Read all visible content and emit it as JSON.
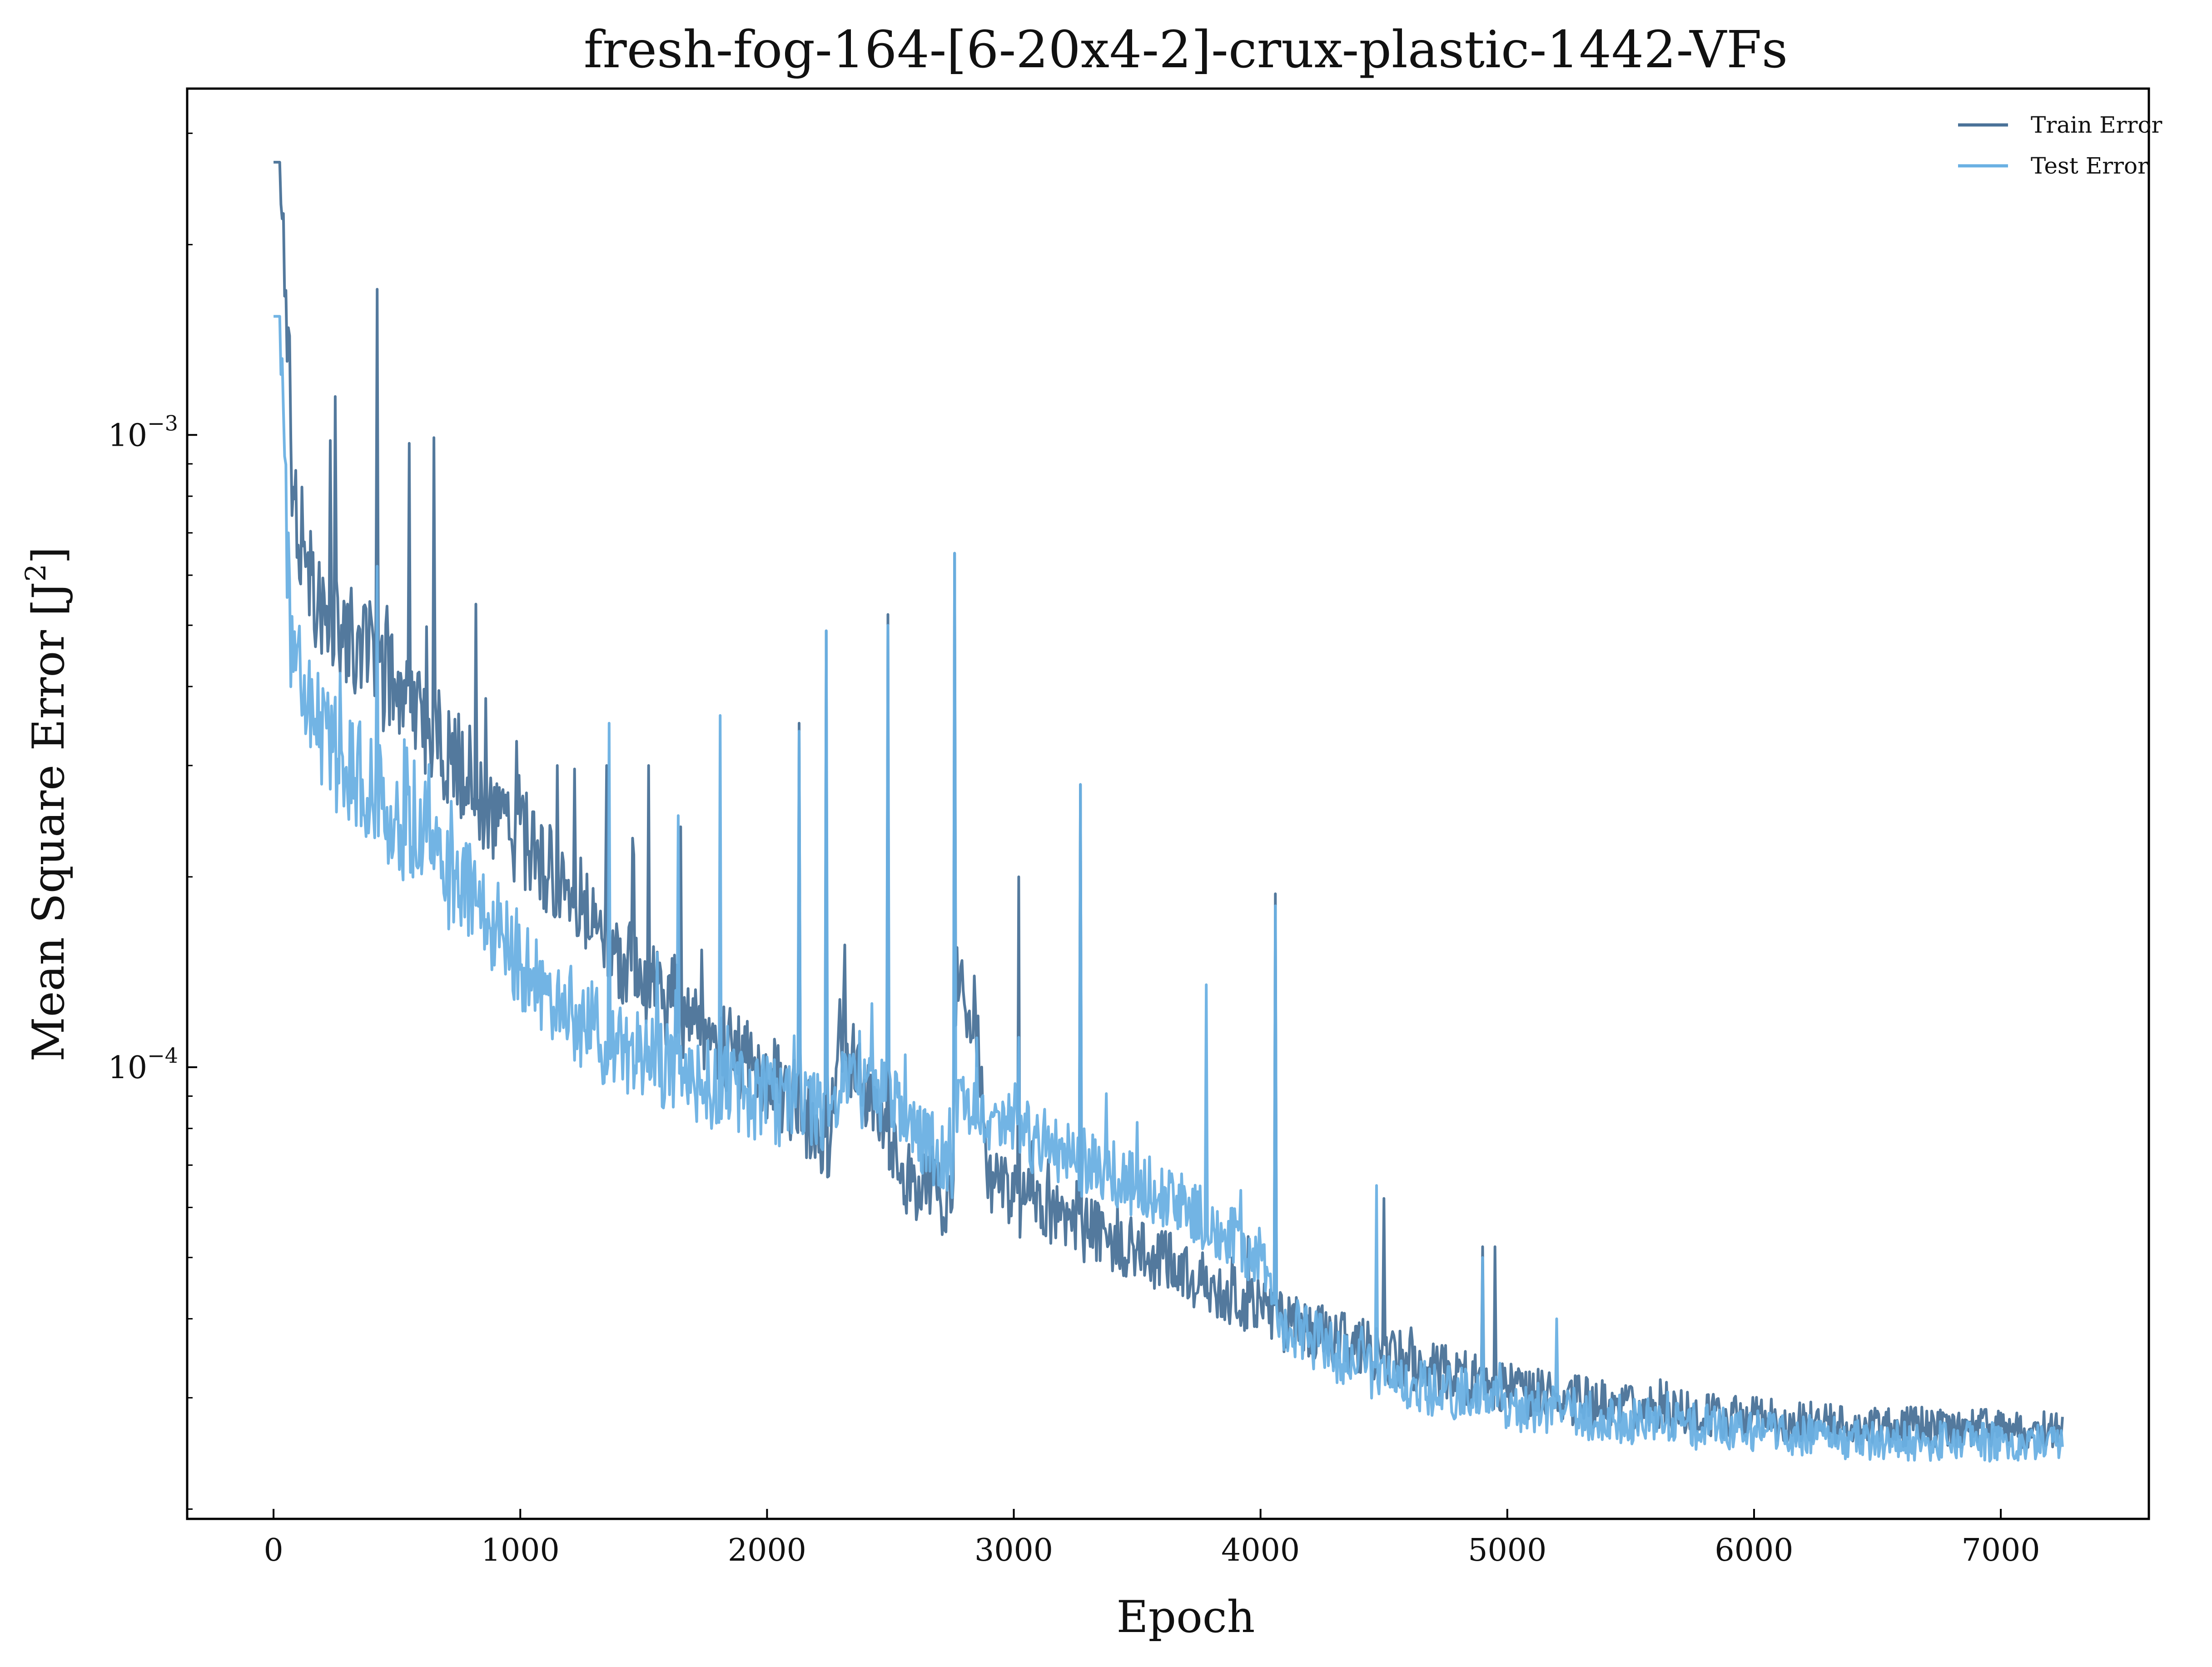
{
  "chart_data": {
    "type": "line",
    "title": "fresh-fog-164-[6-20x4-2]-crux-plastic-1442-VFs",
    "xlabel": "Epoch",
    "ylabel_main": "Mean Square Error [J",
    "ylabel_sup": "2",
    "ylabel_close": "]",
    "yscale": "log",
    "xlim": [
      -350,
      7600
    ],
    "ylim": [
      1.93e-05,
      0.00353
    ],
    "x_ticks": [
      0,
      1000,
      2000,
      3000,
      4000,
      5000,
      6000,
      7000
    ],
    "x_tick_labels": [
      "0",
      "1000",
      "2000",
      "3000",
      "4000",
      "5000",
      "6000",
      "7000"
    ],
    "y_ticks": [
      0.001,
      0.0001
    ],
    "y_tick_base": [
      "10",
      "10"
    ],
    "y_tick_exp": [
      "−3",
      "−4"
    ],
    "grid": false,
    "legend_position": "top-right",
    "series": [
      {
        "name": "Train Error",
        "color": "#4a7298",
        "baseline": [
          [
            0,
            0.0027
          ],
          [
            25,
            0.0027
          ],
          [
            60,
            0.0013
          ],
          [
            80,
            0.00072
          ],
          [
            150,
            0.00055
          ],
          [
            300,
            0.00046
          ],
          [
            500,
            0.00037
          ],
          [
            700,
            0.0003
          ],
          [
            900,
            0.00024
          ],
          [
            1200,
            0.00018
          ],
          [
            1500,
            0.00013
          ],
          [
            1800,
            0.000105
          ],
          [
            2000,
            9.2e-05
          ],
          [
            2100,
            8.5e-05
          ],
          [
            2250,
            7.2e-05
          ],
          [
            2300,
            0.00011
          ],
          [
            2400,
            8.5e-05
          ],
          [
            2500,
            7e-05
          ],
          [
            2600,
            6.2e-05
          ],
          [
            2750,
            5.8e-05
          ],
          [
            2770,
            0.00013
          ],
          [
            2850,
            0.00011
          ],
          [
            2900,
            6.2e-05
          ],
          [
            3200,
            5.5e-05
          ],
          [
            3500,
            5e-05
          ],
          [
            3800,
            4.4e-05
          ],
          [
            4000,
            4e-05
          ],
          [
            4100,
            3.8e-05
          ],
          [
            4500,
            3.4e-05
          ],
          [
            5000,
            3e-05
          ],
          [
            5500,
            2.8e-05
          ],
          [
            6000,
            2.72e-05
          ],
          [
            6500,
            2.65e-05
          ],
          [
            7000,
            2.62e-05
          ],
          [
            7250,
            2.62e-05
          ]
        ],
        "spikes": [
          [
            230,
            0.00098
          ],
          [
            250,
            0.00115
          ],
          [
            420,
            0.0017
          ],
          [
            550,
            0.00097
          ],
          [
            650,
            0.00099
          ],
          [
            820,
            0.00054
          ],
          [
            1150,
            0.0003
          ],
          [
            1350,
            0.0003
          ],
          [
            1520,
            0.0003
          ],
          [
            1650,
            0.00024
          ],
          [
            2130,
            0.00035
          ],
          [
            2240,
            0.00049
          ],
          [
            2490,
            0.00052
          ],
          [
            2760,
            0.00065
          ],
          [
            3020,
            0.0002
          ],
          [
            3270,
            0.00028
          ],
          [
            4060,
            0.000188
          ],
          [
            4500,
            6.2e-05
          ],
          [
            4900,
            5.2e-05
          ],
          [
            4950,
            5.2e-05
          ]
        ]
      },
      {
        "name": "Test Error",
        "color": "#6ab0e3",
        "baseline": [
          [
            0,
            0.00154
          ],
          [
            25,
            0.00154
          ],
          [
            50,
            0.0007
          ],
          [
            70,
            0.00045
          ],
          [
            150,
            0.00033
          ],
          [
            300,
            0.00028
          ],
          [
            500,
            0.00023
          ],
          [
            700,
            0.00019
          ],
          [
            900,
            0.00016
          ],
          [
            1100,
            0.000125
          ],
          [
            1300,
            0.000108
          ],
          [
            1500,
            0.0001
          ],
          [
            1700,
            9.1e-05
          ],
          [
            1900,
            8.6e-05
          ],
          [
            2100,
            8.3e-05
          ],
          [
            2250,
            8e-05
          ],
          [
            2300,
            9e-05
          ],
          [
            2500,
            8.5e-05
          ],
          [
            2600,
            7.5e-05
          ],
          [
            2750,
            6.8e-05
          ],
          [
            2770,
            8.5e-05
          ],
          [
            3000,
            7.7e-05
          ],
          [
            3200,
            7e-05
          ],
          [
            3500,
            6.3e-05
          ],
          [
            3800,
            5.5e-05
          ],
          [
            4000,
            4.8e-05
          ],
          [
            4100,
            3.8e-05
          ],
          [
            4500,
            3.1e-05
          ],
          [
            5000,
            2.85e-05
          ],
          [
            5500,
            2.68e-05
          ],
          [
            6000,
            2.58e-05
          ],
          [
            6500,
            2.52e-05
          ],
          [
            7000,
            2.5e-05
          ],
          [
            7250,
            2.5e-05
          ]
        ],
        "spikes": [
          [
            60,
            0.0007
          ],
          [
            180,
            0.00042
          ],
          [
            270,
            0.00042
          ],
          [
            420,
            0.00062
          ],
          [
            540,
            0.00032
          ],
          [
            1360,
            0.00035
          ],
          [
            1640,
            0.00025
          ],
          [
            1810,
            0.00036
          ],
          [
            2130,
            0.00034
          ],
          [
            2240,
            0.00049
          ],
          [
            2490,
            0.0005
          ],
          [
            2760,
            0.00065
          ],
          [
            3270,
            0.00028
          ],
          [
            3780,
            0.000135
          ],
          [
            4060,
            0.00018
          ],
          [
            4470,
            6.5e-05
          ],
          [
            4900,
            5e-05
          ],
          [
            5200,
            4e-05
          ]
        ]
      }
    ]
  }
}
